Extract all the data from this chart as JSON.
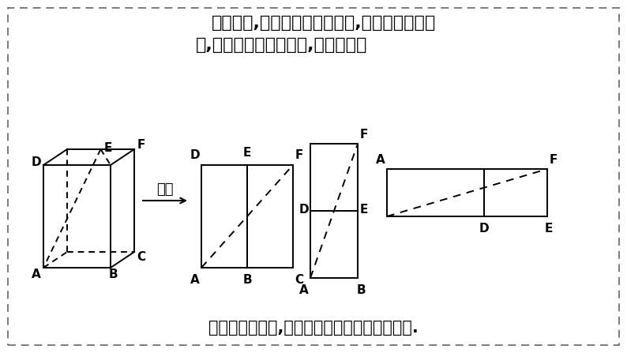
{
  "bg_color": "#ffffff",
  "border_color": "#666666",
  "line_color": "#000000",
  "text_color": "#000000",
  "title_line1": "长方体中,求两点的最短路径长,将相邻两个面展",
  "title_line2": "开,转化到一个长方形中,如图所示：",
  "bottom_text": "展开方式有多种,一般沿最长棱展开路径长最短.",
  "arrow_label": "展开",
  "font_size_title": 16,
  "font_size_label": 10,
  "font_size_bottom": 15
}
